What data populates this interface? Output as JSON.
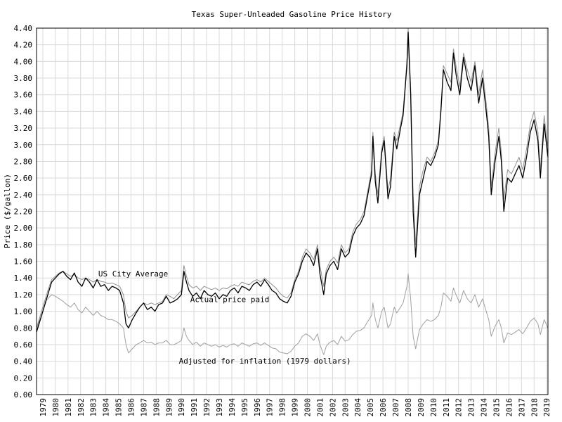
{
  "chart_data": {
    "type": "line",
    "title": "Texas Super-Unleaded Gasoline Price History",
    "xlabel": "",
    "ylabel": "Price ($/gallon)",
    "xlim": [
      1979,
      2019.6
    ],
    "ylim": [
      0,
      4.4
    ],
    "yticks": [
      0.0,
      0.2,
      0.4,
      0.6,
      0.8,
      1.0,
      1.2,
      1.4,
      1.6,
      1.8,
      2.0,
      2.2,
      2.4,
      2.6,
      2.8,
      3.0,
      3.2,
      3.4,
      3.6,
      3.8,
      4.0,
      4.2,
      4.4
    ],
    "xticks": [
      "1979",
      "1980",
      "1981",
      "1982",
      "1983",
      "1984",
      "1985",
      "1986",
      "1987",
      "1988",
      "1989",
      "1990",
      "1991",
      "1992",
      "1993",
      "1994",
      "1995",
      "1996",
      "1997",
      "1998",
      "1999",
      "2000",
      "2001",
      "2002",
      "2003",
      "2004",
      "2005",
      "2006",
      "2007",
      "2008",
      "2009",
      "2010",
      "2011",
      "2012",
      "2013",
      "2014",
      "2015",
      "2016",
      "2017",
      "2018",
      "2019"
    ],
    "grid": true,
    "annotations": [
      {
        "text": "US City Average",
        "x": 1983.9,
        "y": 1.42
      },
      {
        "text": "Actual price paid",
        "x": 1991.2,
        "y": 1.11
      },
      {
        "text": "Adjusted for inflation (1979 dollars)",
        "x": 1990.3,
        "y": 0.37
      }
    ],
    "series": [
      {
        "name": "Actual price paid",
        "color": "#000000",
        "x": [
          1979.0,
          1979.3,
          1979.6,
          1979.9,
          1980.2,
          1980.5,
          1980.8,
          1981.1,
          1981.4,
          1981.7,
          1982.0,
          1982.3,
          1982.6,
          1982.9,
          1983.2,
          1983.5,
          1983.8,
          1984.1,
          1984.4,
          1984.7,
          1985.0,
          1985.3,
          1985.6,
          1985.9,
          1986.1,
          1986.3,
          1986.6,
          1986.9,
          1987.2,
          1987.5,
          1987.8,
          1988.1,
          1988.4,
          1988.7,
          1989.0,
          1989.3,
          1989.6,
          1989.9,
          1990.2,
          1990.5,
          1990.7,
          1990.9,
          1991.1,
          1991.4,
          1991.7,
          1992.0,
          1992.3,
          1992.6,
          1992.9,
          1993.2,
          1993.5,
          1993.8,
          1994.1,
          1994.4,
          1994.7,
          1995.0,
          1995.3,
          1995.6,
          1995.9,
          1996.2,
          1996.5,
          1996.8,
          1997.1,
          1997.4,
          1997.7,
          1998.0,
          1998.3,
          1998.6,
          1998.9,
          1999.2,
          1999.5,
          1999.8,
          2000.1,
          2000.4,
          2000.7,
          2001.0,
          2001.3,
          2001.5,
          2001.8,
          2002.0,
          2002.3,
          2002.6,
          2002.9,
          2003.2,
          2003.5,
          2003.8,
          2004.1,
          2004.4,
          2004.7,
          2005.0,
          2005.3,
          2005.6,
          2005.7,
          2005.9,
          2006.1,
          2006.4,
          2006.6,
          2006.9,
          2007.1,
          2007.4,
          2007.6,
          2007.9,
          2008.1,
          2008.4,
          2008.5,
          2008.7,
          2008.9,
          2009.1,
          2009.4,
          2009.7,
          2010.0,
          2010.3,
          2010.6,
          2010.9,
          2011.1,
          2011.3,
          2011.6,
          2011.9,
          2012.1,
          2012.3,
          2012.6,
          2012.9,
          2013.2,
          2013.5,
          2013.8,
          2014.1,
          2014.4,
          2014.7,
          2014.9,
          2015.1,
          2015.4,
          2015.7,
          2015.9,
          2016.1,
          2016.4,
          2016.7,
          2017.0,
          2017.3,
          2017.6,
          2017.9,
          2018.2,
          2018.5,
          2018.8,
          2019.0,
          2019.3,
          2019.6
        ],
        "values": [
          0.75,
          0.9,
          1.05,
          1.2,
          1.35,
          1.4,
          1.45,
          1.48,
          1.42,
          1.38,
          1.46,
          1.35,
          1.3,
          1.4,
          1.35,
          1.28,
          1.38,
          1.3,
          1.32,
          1.25,
          1.3,
          1.28,
          1.25,
          1.1,
          0.85,
          0.8,
          0.9,
          0.98,
          1.05,
          1.1,
          1.02,
          1.05,
          1.0,
          1.08,
          1.1,
          1.18,
          1.1,
          1.12,
          1.15,
          1.2,
          1.48,
          1.35,
          1.25,
          1.18,
          1.22,
          1.15,
          1.25,
          1.2,
          1.18,
          1.22,
          1.15,
          1.2,
          1.18,
          1.25,
          1.28,
          1.22,
          1.3,
          1.28,
          1.25,
          1.32,
          1.35,
          1.3,
          1.38,
          1.32,
          1.25,
          1.22,
          1.15,
          1.12,
          1.1,
          1.18,
          1.35,
          1.45,
          1.6,
          1.7,
          1.65,
          1.55,
          1.75,
          1.45,
          1.2,
          1.45,
          1.55,
          1.6,
          1.5,
          1.75,
          1.65,
          1.7,
          1.9,
          2.0,
          2.05,
          2.15,
          2.4,
          2.65,
          3.1,
          2.55,
          2.3,
          2.9,
          3.05,
          2.35,
          2.5,
          3.1,
          2.95,
          3.2,
          3.35,
          3.95,
          4.35,
          3.6,
          2.2,
          1.65,
          2.4,
          2.6,
          2.8,
          2.75,
          2.85,
          3.0,
          3.4,
          3.9,
          3.75,
          3.65,
          4.1,
          3.85,
          3.6,
          4.05,
          3.8,
          3.65,
          3.95,
          3.5,
          3.8,
          3.4,
          3.1,
          2.4,
          2.8,
          3.1,
          2.8,
          2.2,
          2.6,
          2.55,
          2.65,
          2.75,
          2.6,
          2.85,
          3.15,
          3.3,
          3.05,
          2.6,
          3.25,
          2.85
        ]
      },
      {
        "name": "US City Average",
        "color": "#909090",
        "x": [
          1979.0,
          1979.3,
          1979.6,
          1979.9,
          1980.2,
          1980.5,
          1980.8,
          1981.1,
          1981.4,
          1981.7,
          1982.0,
          1982.3,
          1982.6,
          1982.9,
          1983.2,
          1983.5,
          1983.8,
          1984.1,
          1984.4,
          1984.7,
          1985.0,
          1985.3,
          1985.6,
          1985.9,
          1986.1,
          1986.3,
          1986.6,
          1986.9,
          1987.2,
          1987.5,
          1987.8,
          1988.1,
          1988.4,
          1988.7,
          1989.0,
          1989.3,
          1989.6,
          1989.9,
          1990.2,
          1990.5,
          1990.7,
          1990.9,
          1991.1,
          1991.4,
          1991.7,
          1992.0,
          1992.3,
          1992.6,
          1992.9,
          1993.2,
          1993.5,
          1993.8,
          1994.1,
          1994.4,
          1994.7,
          1995.0,
          1995.3,
          1995.6,
          1995.9,
          1996.2,
          1996.5,
          1996.8,
          1997.1,
          1997.4,
          1997.7,
          1998.0,
          1998.3,
          1998.6,
          1998.9,
          1999.2,
          1999.5,
          1999.8,
          2000.1,
          2000.4,
          2000.7,
          2001.0,
          2001.3,
          2001.5,
          2001.8,
          2002.0,
          2002.3,
          2002.6,
          2002.9,
          2003.2,
          2003.5,
          2003.8,
          2004.1,
          2004.4,
          2004.7,
          2005.0,
          2005.3,
          2005.6,
          2005.7,
          2005.9,
          2006.1,
          2006.4,
          2006.6,
          2006.9,
          2007.1,
          2007.4,
          2007.6,
          2007.9,
          2008.1,
          2008.4,
          2008.5,
          2008.7,
          2008.9,
          2009.1,
          2009.4,
          2009.7,
          2010.0,
          2010.3,
          2010.6,
          2010.9,
          2011.1,
          2011.3,
          2011.6,
          2011.9,
          2012.1,
          2012.3,
          2012.6,
          2012.9,
          2013.2,
          2013.5,
          2013.8,
          2014.1,
          2014.4,
          2014.7,
          2014.9,
          2015.1,
          2015.4,
          2015.7,
          2015.9,
          2016.1,
          2016.4,
          2016.7,
          2017.0,
          2017.3,
          2017.6,
          2017.9,
          2018.2,
          2018.5,
          2018.8,
          2019.0,
          2019.3,
          2019.6
        ],
        "values": [
          0.8,
          0.95,
          1.1,
          1.25,
          1.38,
          1.42,
          1.46,
          1.48,
          1.45,
          1.42,
          1.44,
          1.4,
          1.38,
          1.4,
          1.38,
          1.35,
          1.38,
          1.36,
          1.35,
          1.33,
          1.34,
          1.32,
          1.3,
          1.2,
          1.0,
          0.92,
          0.95,
          1.0,
          1.05,
          1.1,
          1.08,
          1.1,
          1.08,
          1.1,
          1.12,
          1.2,
          1.18,
          1.15,
          1.2,
          1.25,
          1.55,
          1.42,
          1.32,
          1.28,
          1.3,
          1.25,
          1.3,
          1.28,
          1.26,
          1.28,
          1.25,
          1.28,
          1.27,
          1.3,
          1.32,
          1.3,
          1.35,
          1.33,
          1.32,
          1.36,
          1.38,
          1.35,
          1.4,
          1.36,
          1.32,
          1.28,
          1.22,
          1.18,
          1.16,
          1.22,
          1.38,
          1.48,
          1.65,
          1.75,
          1.7,
          1.62,
          1.8,
          1.55,
          1.3,
          1.5,
          1.6,
          1.65,
          1.58,
          1.8,
          1.7,
          1.75,
          1.95,
          2.05,
          2.1,
          2.2,
          2.45,
          2.7,
          3.15,
          2.65,
          2.4,
          2.95,
          3.1,
          2.45,
          2.6,
          3.15,
          3.05,
          3.25,
          3.4,
          4.0,
          4.4,
          3.7,
          2.4,
          1.8,
          2.5,
          2.7,
          2.85,
          2.8,
          2.9,
          3.05,
          3.45,
          3.95,
          3.85,
          3.75,
          4.15,
          3.95,
          3.7,
          4.1,
          3.9,
          3.75,
          4.0,
          3.6,
          3.9,
          3.5,
          3.2,
          2.5,
          2.9,
          3.2,
          2.9,
          2.35,
          2.7,
          2.65,
          2.75,
          2.85,
          2.7,
          2.95,
          3.25,
          3.4,
          3.15,
          2.7,
          3.35,
          2.95
        ]
      },
      {
        "name": "Adjusted for inflation (1979 dollars)",
        "color": "#a0a0a0",
        "x": [
          1979.0,
          1979.3,
          1979.6,
          1979.9,
          1980.2,
          1980.5,
          1980.8,
          1981.1,
          1981.4,
          1981.7,
          1982.0,
          1982.3,
          1982.6,
          1982.9,
          1983.2,
          1983.5,
          1983.8,
          1984.1,
          1984.4,
          1984.7,
          1985.0,
          1985.3,
          1985.6,
          1985.9,
          1986.1,
          1986.3,
          1986.6,
          1986.9,
          1987.2,
          1987.5,
          1987.8,
          1988.1,
          1988.4,
          1988.7,
          1989.0,
          1989.3,
          1989.6,
          1989.9,
          1990.2,
          1990.5,
          1990.7,
          1990.9,
          1991.1,
          1991.4,
          1991.7,
          1992.0,
          1992.3,
          1992.6,
          1992.9,
          1993.2,
          1993.5,
          1993.8,
          1994.1,
          1994.4,
          1994.7,
          1995.0,
          1995.3,
          1995.6,
          1995.9,
          1996.2,
          1996.5,
          1996.8,
          1997.1,
          1997.4,
          1997.7,
          1998.0,
          1998.3,
          1998.6,
          1998.9,
          1999.2,
          1999.5,
          1999.8,
          2000.1,
          2000.4,
          2000.7,
          2001.0,
          2001.3,
          2001.5,
          2001.8,
          2002.0,
          2002.3,
          2002.6,
          2002.9,
          2003.2,
          2003.5,
          2003.8,
          2004.1,
          2004.4,
          2004.7,
          2005.0,
          2005.3,
          2005.6,
          2005.7,
          2005.9,
          2006.1,
          2006.4,
          2006.6,
          2006.9,
          2007.1,
          2007.4,
          2007.6,
          2007.9,
          2008.1,
          2008.4,
          2008.5,
          2008.7,
          2008.9,
          2009.1,
          2009.4,
          2009.7,
          2010.0,
          2010.3,
          2010.6,
          2010.9,
          2011.1,
          2011.3,
          2011.6,
          2011.9,
          2012.1,
          2012.3,
          2012.6,
          2012.9,
          2013.2,
          2013.5,
          2013.8,
          2014.1,
          2014.4,
          2014.7,
          2014.9,
          2015.1,
          2015.4,
          2015.7,
          2015.9,
          2016.1,
          2016.4,
          2016.7,
          2017.0,
          2017.3,
          2017.6,
          2017.9,
          2018.2,
          2018.5,
          2018.8,
          2019.0,
          2019.3,
          2019.6
        ],
        "values": [
          0.75,
          0.95,
          1.1,
          1.15,
          1.2,
          1.18,
          1.15,
          1.12,
          1.08,
          1.05,
          1.1,
          1.02,
          0.98,
          1.05,
          1.0,
          0.95,
          1.0,
          0.95,
          0.93,
          0.9,
          0.9,
          0.88,
          0.85,
          0.8,
          0.6,
          0.5,
          0.55,
          0.6,
          0.62,
          0.65,
          0.62,
          0.63,
          0.6,
          0.62,
          0.62,
          0.65,
          0.6,
          0.6,
          0.62,
          0.65,
          0.8,
          0.7,
          0.65,
          0.6,
          0.63,
          0.58,
          0.62,
          0.6,
          0.58,
          0.6,
          0.57,
          0.59,
          0.57,
          0.6,
          0.61,
          0.58,
          0.62,
          0.6,
          0.58,
          0.61,
          0.62,
          0.59,
          0.62,
          0.59,
          0.56,
          0.55,
          0.51,
          0.5,
          0.49,
          0.52,
          0.58,
          0.62,
          0.7,
          0.73,
          0.7,
          0.65,
          0.73,
          0.6,
          0.48,
          0.58,
          0.63,
          0.65,
          0.6,
          0.7,
          0.64,
          0.66,
          0.72,
          0.76,
          0.77,
          0.8,
          0.88,
          0.95,
          1.1,
          0.9,
          0.8,
          1.0,
          1.05,
          0.8,
          0.85,
          1.05,
          0.98,
          1.05,
          1.1,
          1.3,
          1.45,
          1.15,
          0.7,
          0.55,
          0.78,
          0.85,
          0.9,
          0.88,
          0.9,
          0.95,
          1.05,
          1.22,
          1.18,
          1.12,
          1.28,
          1.2,
          1.1,
          1.25,
          1.15,
          1.1,
          1.2,
          1.05,
          1.15,
          1.0,
          0.9,
          0.7,
          0.82,
          0.9,
          0.8,
          0.62,
          0.74,
          0.72,
          0.75,
          0.78,
          0.73,
          0.8,
          0.88,
          0.92,
          0.85,
          0.72,
          0.9,
          0.8
        ]
      }
    ]
  }
}
